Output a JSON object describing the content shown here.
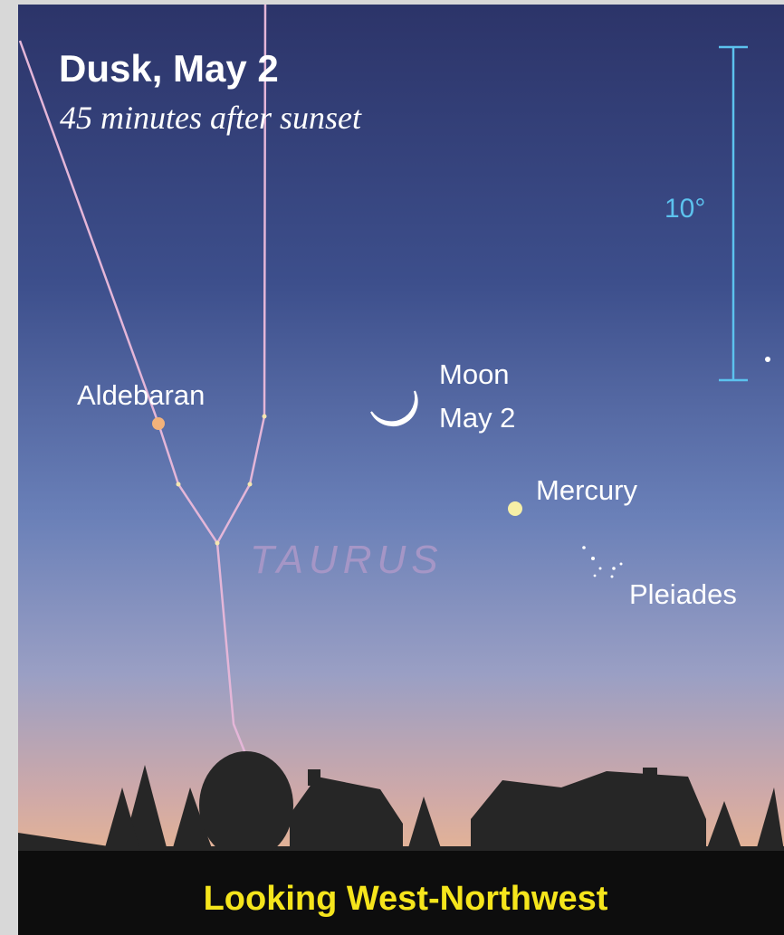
{
  "header": {
    "title": "Dusk, May 2",
    "subtitle": "45 minutes after sunset"
  },
  "scale": {
    "label": "10°"
  },
  "objects": {
    "aldebaran": "Aldebaran",
    "moon": [
      "Moon",
      "May 2"
    ],
    "mercury": "Mercury",
    "pleiades": "Pleiades",
    "constellation": "TAURUS"
  },
  "footer": "Looking West-Northwest"
}
